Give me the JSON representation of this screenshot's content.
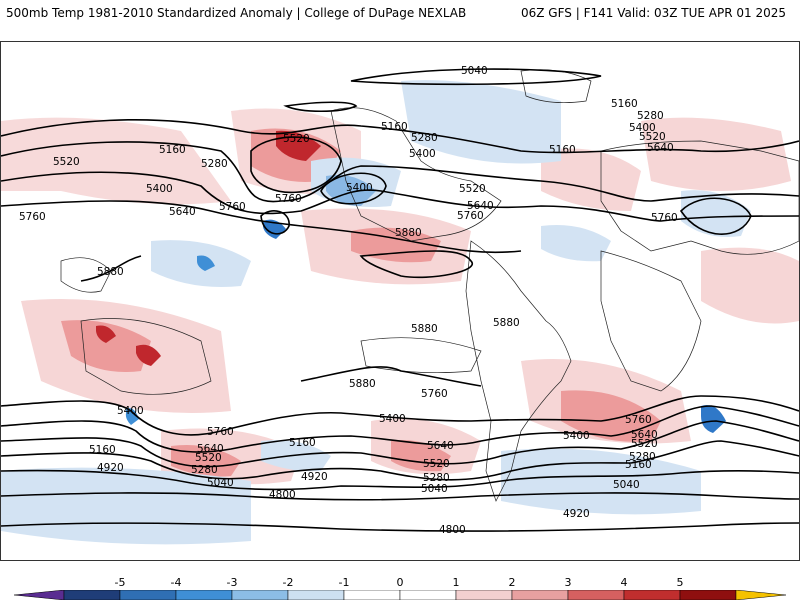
{
  "header": {
    "left_title": "500mb Temp 1981-2010 Standardized Anomaly | College of DuPage NEXLAB",
    "right_title": "06Z GFS | F141 Valid: 03Z TUE APR 01 2025"
  },
  "contour_labels": [
    "5040",
    "5160",
    "5280",
    "5400",
    "5520",
    "5640",
    "5760",
    "5880",
    "4920",
    "4800"
  ],
  "colorbar": {
    "ticks": [
      "-5",
      "-4",
      "-3",
      "-2",
      "-1",
      "0",
      "1",
      "2",
      "3",
      "4",
      "5"
    ],
    "colors": [
      "#5a2d91",
      "#1f3d78",
      "#2f6fb4",
      "#3f8fd6",
      "#8cbde6",
      "#cde0f1",
      "#ffffff",
      "#ffffff",
      "#f3d0d0",
      "#e8a0a0",
      "#d66060",
      "#c02e2e",
      "#8f0f0f",
      "#f5c200"
    ]
  },
  "legend_colors": {
    "anomaly_pos_weak": "#f6d6d6",
    "anomaly_pos_mid": "#ec9b9b",
    "anomaly_pos_strong": "#c0272d",
    "anomaly_neg_weak": "#d3e3f3",
    "anomaly_neg_mid": "#8ab8e4",
    "anomaly_neg_strong": "#2f78c8"
  }
}
